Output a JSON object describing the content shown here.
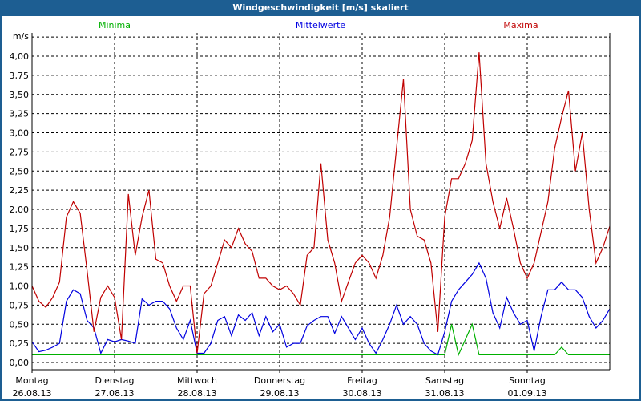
{
  "window": {
    "title": "Windgeschwindigkeit [m/s] skaliert"
  },
  "chart_data": {
    "type": "line",
    "title": "Windgeschwindigkeit [m/s] skaliert",
    "ylabel": "m/s",
    "ylim": [
      0,
      4.25
    ],
    "yticks": [
      "0,00",
      "0,25",
      "0,50",
      "0,75",
      "1,00",
      "1,25",
      "1,50",
      "1,75",
      "2,00",
      "2,25",
      "2,50",
      "2,75",
      "3,00",
      "3,25",
      "3,50",
      "3,75",
      "4,00"
    ],
    "xticks": [
      {
        "day": "Montag",
        "date": "26.08.13"
      },
      {
        "day": "Dienstag",
        "date": "27.08.13"
      },
      {
        "day": "Mittwoch",
        "date": "28.08.13"
      },
      {
        "day": "Donnerstag",
        "date": "29.08.13"
      },
      {
        "day": "Freitag",
        "date": "30.08.13"
      },
      {
        "day": "Samstag",
        "date": "31.08.13"
      },
      {
        "day": "Sonntag",
        "date": "01.09.13"
      }
    ],
    "grid": true,
    "legend_placement": "top",
    "x": [
      "26.08.13 00:00",
      "26.08.13 02:00",
      "26.08.13 04:00",
      "26.08.13 06:00",
      "26.08.13 08:00",
      "26.08.13 10:00",
      "26.08.13 12:00",
      "26.08.13 14:00",
      "26.08.13 16:00",
      "26.08.13 18:00",
      "26.08.13 20:00",
      "26.08.13 22:00",
      "27.08.13 00:00",
      "27.08.13 02:00",
      "27.08.13 04:00",
      "27.08.13 06:00",
      "27.08.13 08:00",
      "27.08.13 10:00",
      "27.08.13 12:00",
      "27.08.13 14:00",
      "27.08.13 16:00",
      "27.08.13 18:00",
      "27.08.13 20:00",
      "27.08.13 22:00",
      "28.08.13 00:00",
      "28.08.13 02:00",
      "28.08.13 04:00",
      "28.08.13 06:00",
      "28.08.13 08:00",
      "28.08.13 10:00",
      "28.08.13 12:00",
      "28.08.13 14:00",
      "28.08.13 16:00",
      "28.08.13 18:00",
      "28.08.13 20:00",
      "28.08.13 22:00",
      "29.08.13 00:00",
      "29.08.13 02:00",
      "29.08.13 04:00",
      "29.08.13 06:00",
      "29.08.13 08:00",
      "29.08.13 10:00",
      "29.08.13 12:00",
      "29.08.13 14:00",
      "29.08.13 16:00",
      "29.08.13 18:00",
      "29.08.13 20:00",
      "29.08.13 22:00",
      "30.08.13 00:00",
      "30.08.13 02:00",
      "30.08.13 04:00",
      "30.08.13 06:00",
      "30.08.13 08:00",
      "30.08.13 10:00",
      "30.08.13 12:00",
      "30.08.13 14:00",
      "30.08.13 16:00",
      "30.08.13 18:00",
      "30.08.13 20:00",
      "30.08.13 22:00",
      "31.08.13 00:00",
      "31.08.13 02:00",
      "31.08.13 04:00",
      "31.08.13 06:00",
      "31.08.13 08:00",
      "31.08.13 10:00",
      "31.08.13 12:00",
      "31.08.13 14:00",
      "31.08.13 16:00",
      "31.08.13 18:00",
      "31.08.13 20:00",
      "31.08.13 22:00",
      "01.09.13 00:00",
      "01.09.13 02:00",
      "01.09.13 04:00",
      "01.09.13 06:00",
      "01.09.13 08:00",
      "01.09.13 10:00",
      "01.09.13 12:00",
      "01.09.13 14:00",
      "01.09.13 16:00",
      "01.09.13 18:00",
      "01.09.13 20:00",
      "01.09.13 22:00",
      "02.09.13 00:00"
    ],
    "series": [
      {
        "name": "Minima",
        "color": "#00b000",
        "values": [
          0.1,
          0.1,
          0.1,
          0.1,
          0.1,
          0.1,
          0.1,
          0.1,
          0.1,
          0.1,
          0.1,
          0.1,
          0.1,
          0.1,
          0.1,
          0.1,
          0.1,
          0.1,
          0.1,
          0.1,
          0.1,
          0.1,
          0.1,
          0.1,
          0.1,
          0.1,
          0.1,
          0.1,
          0.1,
          0.1,
          0.1,
          0.1,
          0.1,
          0.1,
          0.1,
          0.1,
          0.1,
          0.1,
          0.1,
          0.1,
          0.1,
          0.1,
          0.1,
          0.1,
          0.1,
          0.1,
          0.1,
          0.1,
          0.1,
          0.1,
          0.1,
          0.1,
          0.1,
          0.1,
          0.1,
          0.1,
          0.1,
          0.1,
          0.1,
          0.1,
          0.1,
          0.5,
          0.1,
          0.3,
          0.5,
          0.1,
          0.1,
          0.1,
          0.1,
          0.1,
          0.1,
          0.1,
          0.1,
          0.1,
          0.1,
          0.1,
          0.1,
          0.2,
          0.1,
          0.1,
          0.1,
          0.1,
          0.1,
          0.1,
          0.1
        ]
      },
      {
        "name": "Mittelwerte",
        "color": "#0000e0",
        "values": [
          0.27,
          0.14,
          0.16,
          0.2,
          0.25,
          0.8,
          0.95,
          0.9,
          0.55,
          0.45,
          0.12,
          0.3,
          0.27,
          0.3,
          0.28,
          0.25,
          0.83,
          0.75,
          0.8,
          0.8,
          0.7,
          0.45,
          0.3,
          0.55,
          0.12,
          0.12,
          0.25,
          0.55,
          0.6,
          0.35,
          0.62,
          0.55,
          0.65,
          0.35,
          0.6,
          0.4,
          0.5,
          0.2,
          0.25,
          0.25,
          0.48,
          0.55,
          0.6,
          0.6,
          0.38,
          0.6,
          0.45,
          0.3,
          0.45,
          0.25,
          0.12,
          0.3,
          0.5,
          0.75,
          0.5,
          0.6,
          0.5,
          0.25,
          0.15,
          0.1,
          0.4,
          0.8,
          0.95,
          1.05,
          1.15,
          1.3,
          1.1,
          0.65,
          0.45,
          0.85,
          0.65,
          0.5,
          0.55,
          0.15,
          0.6,
          0.95,
          0.95,
          1.05,
          0.95,
          0.95,
          0.85,
          0.6,
          0.45,
          0.55,
          0.7
        ]
      },
      {
        "name": "Maxima",
        "color": "#c00000",
        "values": [
          1.0,
          0.8,
          0.72,
          0.85,
          1.05,
          1.9,
          2.1,
          1.95,
          1.2,
          0.4,
          0.85,
          1.0,
          0.85,
          0.3,
          2.2,
          1.4,
          1.9,
          2.25,
          1.35,
          1.3,
          1.0,
          0.8,
          1.0,
          1.0,
          0.12,
          0.9,
          1.0,
          1.3,
          1.6,
          1.5,
          1.75,
          1.55,
          1.45,
          1.1,
          1.1,
          1.0,
          0.95,
          1.0,
          0.9,
          0.75,
          1.4,
          1.5,
          2.6,
          1.6,
          1.3,
          0.8,
          1.05,
          1.3,
          1.4,
          1.3,
          1.1,
          1.4,
          1.9,
          2.8,
          3.7,
          2.0,
          1.65,
          1.6,
          1.3,
          0.4,
          1.9,
          2.4,
          2.4,
          2.6,
          2.9,
          4.05,
          2.6,
          2.1,
          1.75,
          2.15,
          1.75,
          1.3,
          1.1,
          1.3,
          1.7,
          2.1,
          2.8,
          3.2,
          3.55,
          2.5,
          3.0,
          2.0,
          1.3,
          1.5,
          1.78
        ]
      }
    ]
  }
}
